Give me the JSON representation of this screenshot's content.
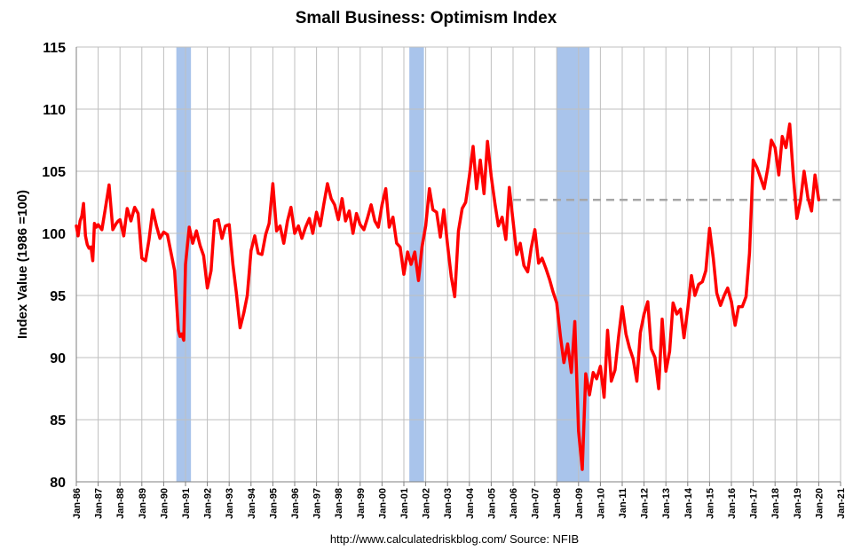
{
  "chart_data": {
    "type": "line",
    "title": "Small Business: Optimism Index",
    "ylabel": "Index Value (1986 =100)",
    "source": "http://www.calculatedriskblog.com/  Source: NFIB",
    "ylim": [
      80,
      115
    ],
    "yticks": [
      80,
      85,
      90,
      95,
      100,
      105,
      110,
      115
    ],
    "xlim": [
      1986.0,
      2021.0
    ],
    "xtick_labels": [
      "Jan-86",
      "Jan-87",
      "Jan-88",
      "Jan-89",
      "Jan-90",
      "Jan-91",
      "Jan-92",
      "Jan-93",
      "Jan-94",
      "Jan-95",
      "Jan-96",
      "Jan-97",
      "Jan-98",
      "Jan-99",
      "Jan-00",
      "Jan-01",
      "Jan-02",
      "Jan-03",
      "Jan-04",
      "Jan-05",
      "Jan-06",
      "Jan-07",
      "Jan-08",
      "Jan-09",
      "Jan-10",
      "Jan-11",
      "Jan-12",
      "Jan-13",
      "Jan-14",
      "Jan-15",
      "Jan-16",
      "Jan-17",
      "Jan-18",
      "Jan-19",
      "Jan-20",
      "Jan-21"
    ],
    "grid": true,
    "colors": {
      "series": "#ff0000",
      "recession": "#a9c4eb",
      "reference": "#a6a6a6",
      "grid": "#bfbfbf",
      "axis": "#7f7f7f"
    },
    "recessions": [
      [
        1990.58,
        1991.25
      ],
      [
        2001.25,
        2001.92
      ],
      [
        2008.0,
        2009.5
      ]
    ],
    "reference_line": {
      "value": 102.7,
      "x_start": 2006.0,
      "x_end": 2021.0
    },
    "series": [
      {
        "x": [
          1986.0,
          1986.08,
          1986.17,
          1986.25,
          1986.33,
          1986.42,
          1986.5,
          1986.58,
          1986.67,
          1986.75,
          1986.83,
          1986.92,
          1987.0,
          1987.17,
          1987.33,
          1987.5,
          1987.67,
          1987.83,
          1987.92,
          1988.0,
          1988.17,
          1988.33,
          1988.5,
          1988.67,
          1988.83,
          1989.0,
          1989.17,
          1989.33,
          1989.5,
          1989.67,
          1989.83,
          1990.0,
          1990.17,
          1990.33,
          1990.5,
          1990.67,
          1990.75,
          1990.83,
          1990.92,
          1991.0,
          1991.17,
          1991.33,
          1991.5,
          1991.67,
          1991.83,
          1992.0,
          1992.17,
          1992.33,
          1992.5,
          1992.67,
          1992.83,
          1993.0,
          1993.17,
          1993.33,
          1993.5,
          1993.67,
          1993.83,
          1994.0,
          1994.17,
          1994.33,
          1994.5,
          1994.67,
          1994.83,
          1995.0,
          1995.17,
          1995.33,
          1995.5,
          1995.67,
          1995.83,
          1996.0,
          1996.17,
          1996.33,
          1996.5,
          1996.67,
          1996.83,
          1997.0,
          1997.17,
          1997.33,
          1997.5,
          1997.67,
          1997.83,
          1998.0,
          1998.17,
          1998.33,
          1998.5,
          1998.67,
          1998.83,
          1999.0,
          1999.17,
          1999.33,
          1999.5,
          1999.67,
          1999.83,
          2000.0,
          2000.17,
          2000.33,
          2000.5,
          2000.67,
          2000.83,
          2001.0,
          2001.17,
          2001.33,
          2001.5,
          2001.67,
          2001.83,
          2002.0,
          2002.17,
          2002.33,
          2002.5,
          2002.67,
          2002.83,
          2003.0,
          2003.17,
          2003.33,
          2003.5,
          2003.67,
          2003.83,
          2004.0,
          2004.17,
          2004.33,
          2004.5,
          2004.67,
          2004.83,
          2005.0,
          2005.17,
          2005.33,
          2005.5,
          2005.67,
          2005.83,
          2006.0,
          2006.17,
          2006.33,
          2006.5,
          2006.67,
          2006.83,
          2007.0,
          2007.17,
          2007.33,
          2007.5,
          2007.67,
          2007.83,
          2008.0,
          2008.17,
          2008.33,
          2008.5,
          2008.67,
          2008.83,
          2009.0,
          2009.17,
          2009.33,
          2009.5,
          2009.67,
          2009.83,
          2010.0,
          2010.17,
          2010.33,
          2010.5,
          2010.67,
          2010.83,
          2011.0,
          2011.17,
          2011.33,
          2011.5,
          2011.67,
          2011.83,
          2012.0,
          2012.17,
          2012.33,
          2012.5,
          2012.67,
          2012.83,
          2013.0,
          2013.17,
          2013.33,
          2013.5,
          2013.67,
          2013.83,
          2014.0,
          2014.17,
          2014.33,
          2014.5,
          2014.67,
          2014.83,
          2015.0,
          2015.17,
          2015.33,
          2015.5,
          2015.67,
          2015.83,
          2016.0,
          2016.17,
          2016.33,
          2016.5,
          2016.67,
          2016.83,
          2017.0,
          2017.17,
          2017.33,
          2017.5,
          2017.67,
          2017.83,
          2018.0,
          2018.17,
          2018.33,
          2018.5,
          2018.67,
          2018.83,
          2019.0,
          2019.17,
          2019.33,
          2019.5,
          2019.67,
          2019.83,
          2020.0
        ],
        "y": [
          100.6,
          99.8,
          101.0,
          101.4,
          102.4,
          99.8,
          99.1,
          98.8,
          98.9,
          97.8,
          100.8,
          100.5,
          100.7,
          100.3,
          102.0,
          103.9,
          100.3,
          100.8,
          101.0,
          101.1,
          99.8,
          102.0,
          101.0,
          102.1,
          101.6,
          98.0,
          97.8,
          99.5,
          101.9,
          100.6,
          99.6,
          100.1,
          99.9,
          98.5,
          97.0,
          92.2,
          91.7,
          91.9,
          91.4,
          97.5,
          100.5,
          99.2,
          100.2,
          99.0,
          98.2,
          95.6,
          97.0,
          101.0,
          101.1,
          99.6,
          100.6,
          100.7,
          97.5,
          95.2,
          92.4,
          93.6,
          95.0,
          98.6,
          99.8,
          98.4,
          98.3,
          99.9,
          100.8,
          104.0,
          100.2,
          100.6,
          99.2,
          101.0,
          102.1,
          100.0,
          100.6,
          99.6,
          100.5,
          101.2,
          100.0,
          101.7,
          100.6,
          102.3,
          104.0,
          102.8,
          102.3,
          101.1,
          102.8,
          101.0,
          101.8,
          100.0,
          101.6,
          100.7,
          100.3,
          101.2,
          102.3,
          101.0,
          100.5,
          102.3,
          103.6,
          100.5,
          101.3,
          99.2,
          98.9,
          96.7,
          98.5,
          97.5,
          98.5,
          96.2,
          98.9,
          100.6,
          103.6,
          101.9,
          101.7,
          99.7,
          101.9,
          99.1,
          96.5,
          94.9,
          100.2,
          102.0,
          102.5,
          104.6,
          107.0,
          103.6,
          105.9,
          103.2,
          107.4,
          104.6,
          102.4,
          100.6,
          101.3,
          99.5,
          103.7,
          101.0,
          98.3,
          99.2,
          97.4,
          96.9,
          98.8,
          100.3,
          97.6,
          98.0,
          97.2,
          96.3,
          95.3,
          94.4,
          91.7,
          89.6,
          91.1,
          88.8,
          92.9,
          84.1,
          81.0,
          88.7,
          87.0,
          88.8,
          88.3,
          89.3,
          86.8,
          92.2,
          88.1,
          89.0,
          91.6,
          94.1,
          91.9,
          90.8,
          89.9,
          88.1,
          92.0,
          93.5,
          94.5,
          90.7,
          90.0,
          87.5,
          93.1,
          88.9,
          90.5,
          94.4,
          93.5,
          93.9,
          91.6,
          93.9,
          96.6,
          95.0,
          95.9,
          96.1,
          97.0,
          100.4,
          98.0,
          95.2,
          94.2,
          95.0,
          95.6,
          94.5,
          92.6,
          94.1,
          94.1,
          94.9,
          98.4,
          105.9,
          105.3,
          104.5,
          103.6,
          105.3,
          107.5,
          106.9,
          104.7,
          107.8,
          106.9,
          108.8,
          104.8,
          101.2,
          102.7,
          105.0,
          102.9,
          101.8,
          104.7,
          102.7
        ]
      }
    ]
  }
}
